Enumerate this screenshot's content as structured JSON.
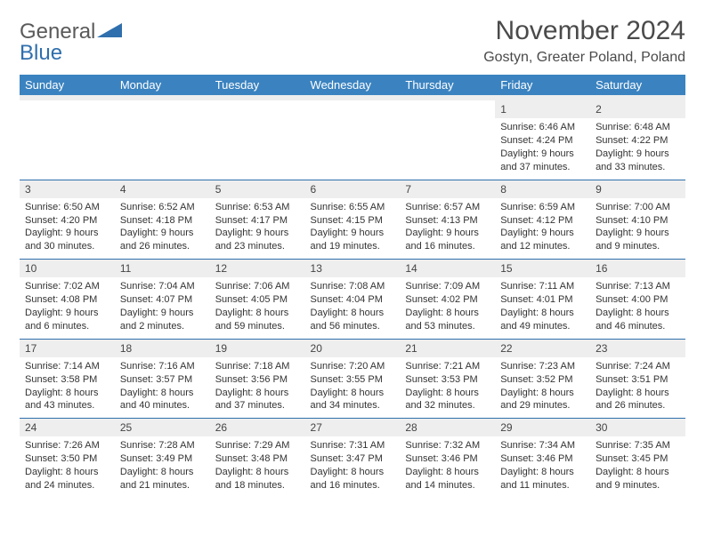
{
  "brand": {
    "word1": "General",
    "word2": "Blue"
  },
  "title": "November 2024",
  "location": "Gostyn, Greater Poland, Poland",
  "weekday_headers": [
    "Sunday",
    "Monday",
    "Tuesday",
    "Wednesday",
    "Thursday",
    "Friday",
    "Saturday"
  ],
  "colors": {
    "header_bg": "#3b83c0",
    "header_text": "#ffffff",
    "rule": "#2f6fad",
    "daynum_bg": "#eeeeee",
    "text": "#333333"
  },
  "weeks": [
    [
      {
        "n": "",
        "sunrise": "",
        "sunset": "",
        "daylight": ""
      },
      {
        "n": "",
        "sunrise": "",
        "sunset": "",
        "daylight": ""
      },
      {
        "n": "",
        "sunrise": "",
        "sunset": "",
        "daylight": ""
      },
      {
        "n": "",
        "sunrise": "",
        "sunset": "",
        "daylight": ""
      },
      {
        "n": "",
        "sunrise": "",
        "sunset": "",
        "daylight": ""
      },
      {
        "n": "1",
        "sunrise": "Sunrise: 6:46 AM",
        "sunset": "Sunset: 4:24 PM",
        "daylight": "Daylight: 9 hours and 37 minutes."
      },
      {
        "n": "2",
        "sunrise": "Sunrise: 6:48 AM",
        "sunset": "Sunset: 4:22 PM",
        "daylight": "Daylight: 9 hours and 33 minutes."
      }
    ],
    [
      {
        "n": "3",
        "sunrise": "Sunrise: 6:50 AM",
        "sunset": "Sunset: 4:20 PM",
        "daylight": "Daylight: 9 hours and 30 minutes."
      },
      {
        "n": "4",
        "sunrise": "Sunrise: 6:52 AM",
        "sunset": "Sunset: 4:18 PM",
        "daylight": "Daylight: 9 hours and 26 minutes."
      },
      {
        "n": "5",
        "sunrise": "Sunrise: 6:53 AM",
        "sunset": "Sunset: 4:17 PM",
        "daylight": "Daylight: 9 hours and 23 minutes."
      },
      {
        "n": "6",
        "sunrise": "Sunrise: 6:55 AM",
        "sunset": "Sunset: 4:15 PM",
        "daylight": "Daylight: 9 hours and 19 minutes."
      },
      {
        "n": "7",
        "sunrise": "Sunrise: 6:57 AM",
        "sunset": "Sunset: 4:13 PM",
        "daylight": "Daylight: 9 hours and 16 minutes."
      },
      {
        "n": "8",
        "sunrise": "Sunrise: 6:59 AM",
        "sunset": "Sunset: 4:12 PM",
        "daylight": "Daylight: 9 hours and 12 minutes."
      },
      {
        "n": "9",
        "sunrise": "Sunrise: 7:00 AM",
        "sunset": "Sunset: 4:10 PM",
        "daylight": "Daylight: 9 hours and 9 minutes."
      }
    ],
    [
      {
        "n": "10",
        "sunrise": "Sunrise: 7:02 AM",
        "sunset": "Sunset: 4:08 PM",
        "daylight": "Daylight: 9 hours and 6 minutes."
      },
      {
        "n": "11",
        "sunrise": "Sunrise: 7:04 AM",
        "sunset": "Sunset: 4:07 PM",
        "daylight": "Daylight: 9 hours and 2 minutes."
      },
      {
        "n": "12",
        "sunrise": "Sunrise: 7:06 AM",
        "sunset": "Sunset: 4:05 PM",
        "daylight": "Daylight: 8 hours and 59 minutes."
      },
      {
        "n": "13",
        "sunrise": "Sunrise: 7:08 AM",
        "sunset": "Sunset: 4:04 PM",
        "daylight": "Daylight: 8 hours and 56 minutes."
      },
      {
        "n": "14",
        "sunrise": "Sunrise: 7:09 AM",
        "sunset": "Sunset: 4:02 PM",
        "daylight": "Daylight: 8 hours and 53 minutes."
      },
      {
        "n": "15",
        "sunrise": "Sunrise: 7:11 AM",
        "sunset": "Sunset: 4:01 PM",
        "daylight": "Daylight: 8 hours and 49 minutes."
      },
      {
        "n": "16",
        "sunrise": "Sunrise: 7:13 AM",
        "sunset": "Sunset: 4:00 PM",
        "daylight": "Daylight: 8 hours and 46 minutes."
      }
    ],
    [
      {
        "n": "17",
        "sunrise": "Sunrise: 7:14 AM",
        "sunset": "Sunset: 3:58 PM",
        "daylight": "Daylight: 8 hours and 43 minutes."
      },
      {
        "n": "18",
        "sunrise": "Sunrise: 7:16 AM",
        "sunset": "Sunset: 3:57 PM",
        "daylight": "Daylight: 8 hours and 40 minutes."
      },
      {
        "n": "19",
        "sunrise": "Sunrise: 7:18 AM",
        "sunset": "Sunset: 3:56 PM",
        "daylight": "Daylight: 8 hours and 37 minutes."
      },
      {
        "n": "20",
        "sunrise": "Sunrise: 7:20 AM",
        "sunset": "Sunset: 3:55 PM",
        "daylight": "Daylight: 8 hours and 34 minutes."
      },
      {
        "n": "21",
        "sunrise": "Sunrise: 7:21 AM",
        "sunset": "Sunset: 3:53 PM",
        "daylight": "Daylight: 8 hours and 32 minutes."
      },
      {
        "n": "22",
        "sunrise": "Sunrise: 7:23 AM",
        "sunset": "Sunset: 3:52 PM",
        "daylight": "Daylight: 8 hours and 29 minutes."
      },
      {
        "n": "23",
        "sunrise": "Sunrise: 7:24 AM",
        "sunset": "Sunset: 3:51 PM",
        "daylight": "Daylight: 8 hours and 26 minutes."
      }
    ],
    [
      {
        "n": "24",
        "sunrise": "Sunrise: 7:26 AM",
        "sunset": "Sunset: 3:50 PM",
        "daylight": "Daylight: 8 hours and 24 minutes."
      },
      {
        "n": "25",
        "sunrise": "Sunrise: 7:28 AM",
        "sunset": "Sunset: 3:49 PM",
        "daylight": "Daylight: 8 hours and 21 minutes."
      },
      {
        "n": "26",
        "sunrise": "Sunrise: 7:29 AM",
        "sunset": "Sunset: 3:48 PM",
        "daylight": "Daylight: 8 hours and 18 minutes."
      },
      {
        "n": "27",
        "sunrise": "Sunrise: 7:31 AM",
        "sunset": "Sunset: 3:47 PM",
        "daylight": "Daylight: 8 hours and 16 minutes."
      },
      {
        "n": "28",
        "sunrise": "Sunrise: 7:32 AM",
        "sunset": "Sunset: 3:46 PM",
        "daylight": "Daylight: 8 hours and 14 minutes."
      },
      {
        "n": "29",
        "sunrise": "Sunrise: 7:34 AM",
        "sunset": "Sunset: 3:46 PM",
        "daylight": "Daylight: 8 hours and 11 minutes."
      },
      {
        "n": "30",
        "sunrise": "Sunrise: 7:35 AM",
        "sunset": "Sunset: 3:45 PM",
        "daylight": "Daylight: 8 hours and 9 minutes."
      }
    ]
  ]
}
